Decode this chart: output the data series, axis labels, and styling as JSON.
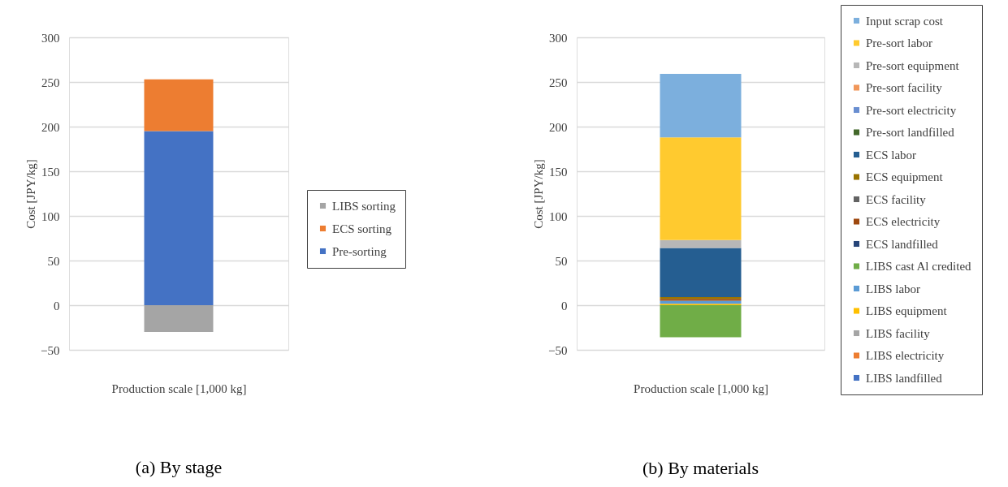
{
  "chart_data": [
    {
      "type": "bar",
      "title": "(a) By stage",
      "xlabel": "Production scale [1,000 kg]",
      "ylabel": "Cost [JPY/kg]",
      "categories": [
        null
      ],
      "stacked": true,
      "ylim": [
        -50,
        300
      ],
      "yticks": [
        -50,
        0,
        50,
        100,
        150,
        200,
        250,
        300
      ],
      "grid": "y",
      "legend": "right",
      "tick_labels": "y",
      "series": [
        {
          "name": "Pre-sorting",
          "color": "#4472c4",
          "values": [
            195
          ]
        },
        {
          "name": "ECS sorting",
          "color": "#ed7d31",
          "values": [
            58
          ]
        },
        {
          "name": "LIBS sorting",
          "color": "#a5a5a5",
          "values": [
            -30
          ]
        }
      ]
    },
    {
      "type": "bar",
      "title": "(b) By materials",
      "xlabel": "Production scale [1,000 kg]",
      "ylabel": "Cost [JPY/kg]",
      "categories": [
        null
      ],
      "stacked": true,
      "ylim": [
        -50,
        300
      ],
      "yticks": [
        -50,
        0,
        50,
        100,
        150,
        200,
        250,
        300
      ],
      "grid": "y",
      "legend": "right",
      "tick_labels": "y",
      "series": [
        {
          "name": "LIBS landfilled",
          "color": "#4472c4",
          "values": [
            0
          ]
        },
        {
          "name": "LIBS electricity",
          "color": "#ed7d31",
          "values": [
            0
          ]
        },
        {
          "name": "LIBS facility",
          "color": "#a5a5a5",
          "values": [
            0
          ]
        },
        {
          "name": "LIBS equipment",
          "color": "#ffc000",
          "values": [
            1.5
          ]
        },
        {
          "name": "LIBS labor",
          "color": "#5b9bd5",
          "values": [
            3.5
          ]
        },
        {
          "name": "LIBS cast Al credited",
          "color": "#70ad47",
          "values": [
            -36
          ]
        },
        {
          "name": "ECS landfilled",
          "color": "#264478",
          "values": [
            0
          ]
        },
        {
          "name": "ECS electricity",
          "color": "#9e480e",
          "values": [
            2
          ]
        },
        {
          "name": "ECS facility",
          "color": "#636363",
          "values": [
            0
          ]
        },
        {
          "name": "ECS equipment",
          "color": "#997300",
          "values": [
            2
          ]
        },
        {
          "name": "ECS labor",
          "color": "#255e91",
          "values": [
            55
          ]
        },
        {
          "name": "Pre-sort landfilled",
          "color": "#43682b",
          "values": [
            0
          ]
        },
        {
          "name": "Pre-sort electricity",
          "color": "#698ed0",
          "values": [
            0
          ]
        },
        {
          "name": "Pre-sort facility",
          "color": "#f1975a",
          "values": [
            0
          ]
        },
        {
          "name": "Pre-sort equipment",
          "color": "#b7b7b7",
          "values": [
            9
          ]
        },
        {
          "name": "Pre-sort labor",
          "color": "#ffca2f",
          "values": [
            115
          ]
        },
        {
          "name": "Input scrap cost",
          "color": "#7cafdd",
          "values": [
            71
          ]
        }
      ]
    }
  ]
}
